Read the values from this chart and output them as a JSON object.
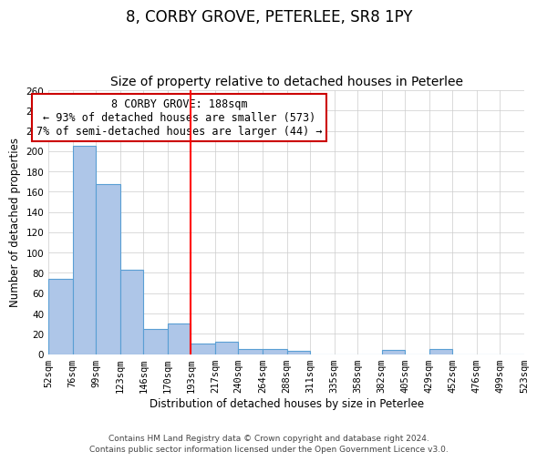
{
  "title": "8, CORBY GROVE, PETERLEE, SR8 1PY",
  "subtitle": "Size of property relative to detached houses in Peterlee",
  "xlabel": "Distribution of detached houses by size in Peterlee",
  "ylabel": "Number of detached properties",
  "bin_labels": [
    "52sqm",
    "76sqm",
    "99sqm",
    "123sqm",
    "146sqm",
    "170sqm",
    "193sqm",
    "217sqm",
    "240sqm",
    "264sqm",
    "288sqm",
    "311sqm",
    "335sqm",
    "358sqm",
    "382sqm",
    "405sqm",
    "429sqm",
    "452sqm",
    "476sqm",
    "499sqm",
    "523sqm"
  ],
  "bin_edges": [
    52,
    76,
    99,
    123,
    146,
    170,
    193,
    217,
    240,
    264,
    288,
    311,
    335,
    358,
    382,
    405,
    429,
    452,
    476,
    499,
    523
  ],
  "bar_heights": [
    74,
    205,
    168,
    83,
    25,
    30,
    10,
    12,
    5,
    5,
    3,
    0,
    0,
    0,
    4,
    0,
    5,
    0,
    0,
    0
  ],
  "bar_color": "#aec6e8",
  "bar_edge_color": "#5a9fd4",
  "red_line_x": 193,
  "ylim": [
    0,
    260
  ],
  "yticks": [
    0,
    20,
    40,
    60,
    80,
    100,
    120,
    140,
    160,
    180,
    200,
    220,
    240,
    260
  ],
  "annotation_line1": "8 CORBY GROVE: 188sqm",
  "annotation_line2": "← 93% of detached houses are smaller (573)",
  "annotation_line3": "7% of semi-detached houses are larger (44) →",
  "annotation_box_color": "#ffffff",
  "annotation_box_edge_color": "#cc0000",
  "footer_line1": "Contains HM Land Registry data © Crown copyright and database right 2024.",
  "footer_line2": "Contains public sector information licensed under the Open Government Licence v3.0.",
  "background_color": "#ffffff",
  "grid_color": "#cccccc",
  "title_fontsize": 12,
  "subtitle_fontsize": 10,
  "axis_label_fontsize": 8.5,
  "tick_fontsize": 7.5,
  "annotation_fontsize": 8.5,
  "footer_fontsize": 6.5
}
